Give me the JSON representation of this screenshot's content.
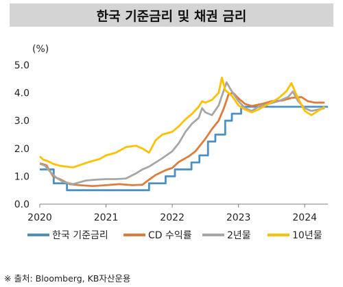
{
  "chart_data": {
    "type": "line",
    "title": "한국 기준금리 및 채권 금리",
    "ylabel": "(%)",
    "xlabel": "",
    "ylim": [
      0,
      5
    ],
    "xlim": [
      2020,
      2024.35
    ],
    "yticks": [
      "0.0",
      "1.0",
      "2.0",
      "3.0",
      "4.0",
      "5.0"
    ],
    "ytick_values": [
      0,
      1,
      2,
      3,
      4,
      5
    ],
    "xticks": [
      "2020",
      "2021",
      "2022",
      "2023",
      "2024"
    ],
    "xtick_values": [
      2020,
      2021,
      2022,
      2023,
      2024
    ],
    "grid": false,
    "legend_position": "bottom",
    "series": [
      {
        "name": "한국 기준금리",
        "color": "#4a90c8",
        "step": true,
        "points": [
          [
            2020.0,
            1.25
          ],
          [
            2020.21,
            0.75
          ],
          [
            2020.41,
            0.5
          ],
          [
            2021.65,
            0.75
          ],
          [
            2021.9,
            1.0
          ],
          [
            2022.04,
            1.25
          ],
          [
            2022.29,
            1.5
          ],
          [
            2022.41,
            1.75
          ],
          [
            2022.54,
            2.25
          ],
          [
            2022.65,
            2.5
          ],
          [
            2022.8,
            3.0
          ],
          [
            2022.9,
            3.25
          ],
          [
            2023.04,
            3.5
          ],
          [
            2024.35,
            3.5
          ]
        ]
      },
      {
        "name": "CD 수익률",
        "color": "#e07b39",
        "points": [
          [
            2020.0,
            1.47
          ],
          [
            2020.1,
            1.4
          ],
          [
            2020.2,
            1.0
          ],
          [
            2020.3,
            0.9
          ],
          [
            2020.45,
            0.72
          ],
          [
            2020.6,
            0.68
          ],
          [
            2020.8,
            0.65
          ],
          [
            2021.0,
            0.68
          ],
          [
            2021.2,
            0.72
          ],
          [
            2021.4,
            0.68
          ],
          [
            2021.55,
            0.7
          ],
          [
            2021.65,
            0.88
          ],
          [
            2021.75,
            1.05
          ],
          [
            2021.9,
            1.22
          ],
          [
            2022.0,
            1.3
          ],
          [
            2022.1,
            1.52
          ],
          [
            2022.25,
            1.72
          ],
          [
            2022.35,
            1.9
          ],
          [
            2022.5,
            2.35
          ],
          [
            2022.6,
            2.7
          ],
          [
            2022.7,
            3.0
          ],
          [
            2022.78,
            3.45
          ],
          [
            2022.85,
            3.95
          ],
          [
            2022.92,
            4.0
          ],
          [
            2023.0,
            3.8
          ],
          [
            2023.1,
            3.6
          ],
          [
            2023.2,
            3.53
          ],
          [
            2023.35,
            3.6
          ],
          [
            2023.5,
            3.7
          ],
          [
            2023.65,
            3.72
          ],
          [
            2023.8,
            3.82
          ],
          [
            2023.95,
            3.85
          ],
          [
            2024.05,
            3.7
          ],
          [
            2024.15,
            3.65
          ],
          [
            2024.3,
            3.65
          ]
        ]
      },
      {
        "name": "2년물",
        "color": "#a6a6a6",
        "points": [
          [
            2020.0,
            1.45
          ],
          [
            2020.08,
            1.38
          ],
          [
            2020.18,
            1.1
          ],
          [
            2020.25,
            0.95
          ],
          [
            2020.35,
            0.8
          ],
          [
            2020.5,
            0.72
          ],
          [
            2020.7,
            0.85
          ],
          [
            2020.85,
            0.88
          ],
          [
            2021.0,
            0.9
          ],
          [
            2021.15,
            0.9
          ],
          [
            2021.3,
            0.92
          ],
          [
            2021.45,
            1.1
          ],
          [
            2021.55,
            1.25
          ],
          [
            2021.65,
            1.35
          ],
          [
            2021.75,
            1.5
          ],
          [
            2021.85,
            1.65
          ],
          [
            2022.0,
            1.9
          ],
          [
            2022.1,
            2.2
          ],
          [
            2022.2,
            2.6
          ],
          [
            2022.3,
            2.9
          ],
          [
            2022.4,
            3.1
          ],
          [
            2022.45,
            3.45
          ],
          [
            2022.5,
            3.3
          ],
          [
            2022.6,
            3.2
          ],
          [
            2022.7,
            3.55
          ],
          [
            2022.78,
            4.1
          ],
          [
            2022.82,
            4.38
          ],
          [
            2022.9,
            4.05
          ],
          [
            2023.0,
            3.7
          ],
          [
            2023.1,
            3.45
          ],
          [
            2023.2,
            3.35
          ],
          [
            2023.3,
            3.5
          ],
          [
            2023.45,
            3.6
          ],
          [
            2023.6,
            3.7
          ],
          [
            2023.75,
            3.85
          ],
          [
            2023.82,
            4.05
          ],
          [
            2023.9,
            3.7
          ],
          [
            2024.0,
            3.45
          ],
          [
            2024.1,
            3.35
          ],
          [
            2024.2,
            3.4
          ],
          [
            2024.3,
            3.45
          ]
        ]
      },
      {
        "name": "10년물",
        "color": "#ffc000",
        "points": [
          [
            2020.0,
            1.72
          ],
          [
            2020.05,
            1.6
          ],
          [
            2020.12,
            1.55
          ],
          [
            2020.2,
            1.45
          ],
          [
            2020.3,
            1.38
          ],
          [
            2020.4,
            1.35
          ],
          [
            2020.5,
            1.32
          ],
          [
            2020.6,
            1.4
          ],
          [
            2020.75,
            1.52
          ],
          [
            2020.9,
            1.62
          ],
          [
            2021.0,
            1.75
          ],
          [
            2021.15,
            1.85
          ],
          [
            2021.3,
            2.05
          ],
          [
            2021.45,
            2.1
          ],
          [
            2021.55,
            2.0
          ],
          [
            2021.65,
            1.85
          ],
          [
            2021.75,
            2.3
          ],
          [
            2021.85,
            2.5
          ],
          [
            2022.0,
            2.6
          ],
          [
            2022.1,
            2.8
          ],
          [
            2022.2,
            3.05
          ],
          [
            2022.3,
            3.25
          ],
          [
            2022.4,
            3.5
          ],
          [
            2022.45,
            3.7
          ],
          [
            2022.5,
            3.65
          ],
          [
            2022.6,
            3.75
          ],
          [
            2022.7,
            4.0
          ],
          [
            2022.75,
            4.55
          ],
          [
            2022.8,
            4.1
          ],
          [
            2022.9,
            3.9
          ],
          [
            2023.0,
            3.55
          ],
          [
            2023.1,
            3.4
          ],
          [
            2023.2,
            3.3
          ],
          [
            2023.3,
            3.4
          ],
          [
            2023.45,
            3.6
          ],
          [
            2023.6,
            3.8
          ],
          [
            2023.72,
            4.05
          ],
          [
            2023.8,
            4.35
          ],
          [
            2023.88,
            3.9
          ],
          [
            2024.0,
            3.35
          ],
          [
            2024.1,
            3.2
          ],
          [
            2024.2,
            3.35
          ],
          [
            2024.3,
            3.5
          ]
        ]
      }
    ]
  },
  "source_note": "※ 출처: Bloomberg, KB자산운용"
}
